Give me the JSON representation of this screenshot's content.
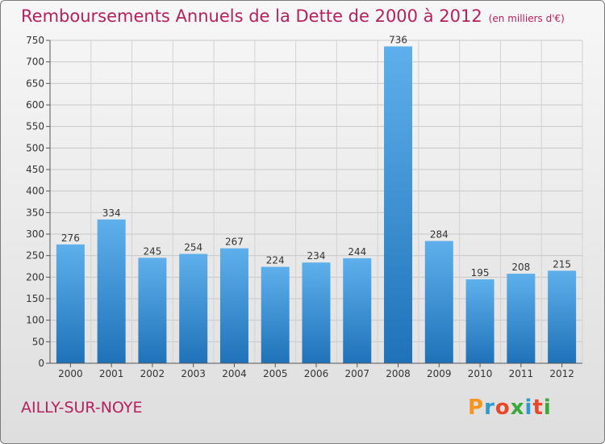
{
  "header": {
    "title": "Remboursements Annuels de la Dette de 2000 à 2012",
    "unit": "(en milliers d'€)"
  },
  "footer": {
    "commune": "AILLY-SUR-NOYE",
    "logo_text": "Proxiti",
    "logo_colors": [
      "#f7941d",
      "#2e9ad0",
      "#e8472b",
      "#3aa935",
      "#2e9ad0",
      "#e8472b",
      "#3aa935"
    ]
  },
  "colors": {
    "bar_light": "#5eb0ec",
    "bar_dark": "#1f72b8",
    "title": "#b5205f"
  },
  "chart_data": {
    "type": "bar",
    "title": "Remboursements Annuels de la Dette de 2000 à 2012",
    "categories": [
      "2000",
      "2001",
      "2002",
      "2003",
      "2004",
      "2005",
      "2006",
      "2007",
      "2008",
      "2009",
      "2010",
      "2011",
      "2012"
    ],
    "values": [
      276,
      334,
      245,
      254,
      267,
      224,
      234,
      244,
      736,
      284,
      195,
      208,
      215
    ],
    "ylim": [
      0,
      750
    ],
    "yticks": [
      0,
      50,
      100,
      150,
      200,
      250,
      300,
      350,
      400,
      450,
      500,
      550,
      600,
      650,
      700,
      750
    ],
    "grid": true,
    "legend": "none"
  }
}
